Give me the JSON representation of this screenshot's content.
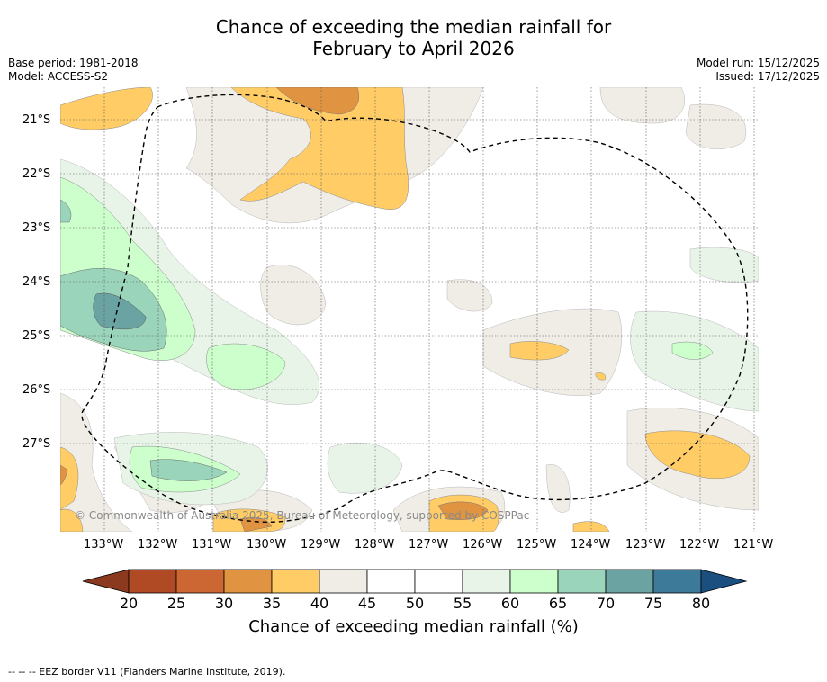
{
  "title": {
    "line1": "Chance of exceeding the median rainfall for",
    "line2": "February to April 2026"
  },
  "meta_left": {
    "base_period": "Base period: 1981-2018",
    "model": "Model: ACCESS-S2"
  },
  "meta_right": {
    "model_run": "Model run: 15/12/2025",
    "issued": "Issued: 17/12/2025"
  },
  "map": {
    "longitudes": [
      "133°W",
      "132°W",
      "131°W",
      "130°W",
      "129°W",
      "128°W",
      "127°W",
      "126°W",
      "125°W",
      "124°W",
      "123°W",
      "122°W",
      "121°W"
    ],
    "latitudes": [
      "21°S",
      "22°S",
      "23°S",
      "24°S",
      "25°S",
      "26°S",
      "27°S"
    ],
    "copyright": "© Commonwealth of Australia 2025, Bureau of Meteorology, supported by COSPPac"
  },
  "colorbar": {
    "tick_labels": [
      "20",
      "25",
      "30",
      "35",
      "40",
      "45",
      "50",
      "55",
      "60",
      "65",
      "70",
      "75",
      "80"
    ],
    "colors": [
      "#8c3a1f",
      "#b04a24",
      "#cc6633",
      "#e09340",
      "#ffcc66",
      "#f0ece6",
      "#ffffff",
      "#ffffff",
      "#e8f4e8",
      "#ccffcc",
      "#99d4bb",
      "#6ba3a3",
      "#3d7a99",
      "#1a4f80"
    ],
    "title": "Chance of exceeding median rainfall (%)"
  },
  "footer": {
    "eez_note": "--  --  -- EEZ border V11 (Flanders Marine Institute, 2019)."
  }
}
